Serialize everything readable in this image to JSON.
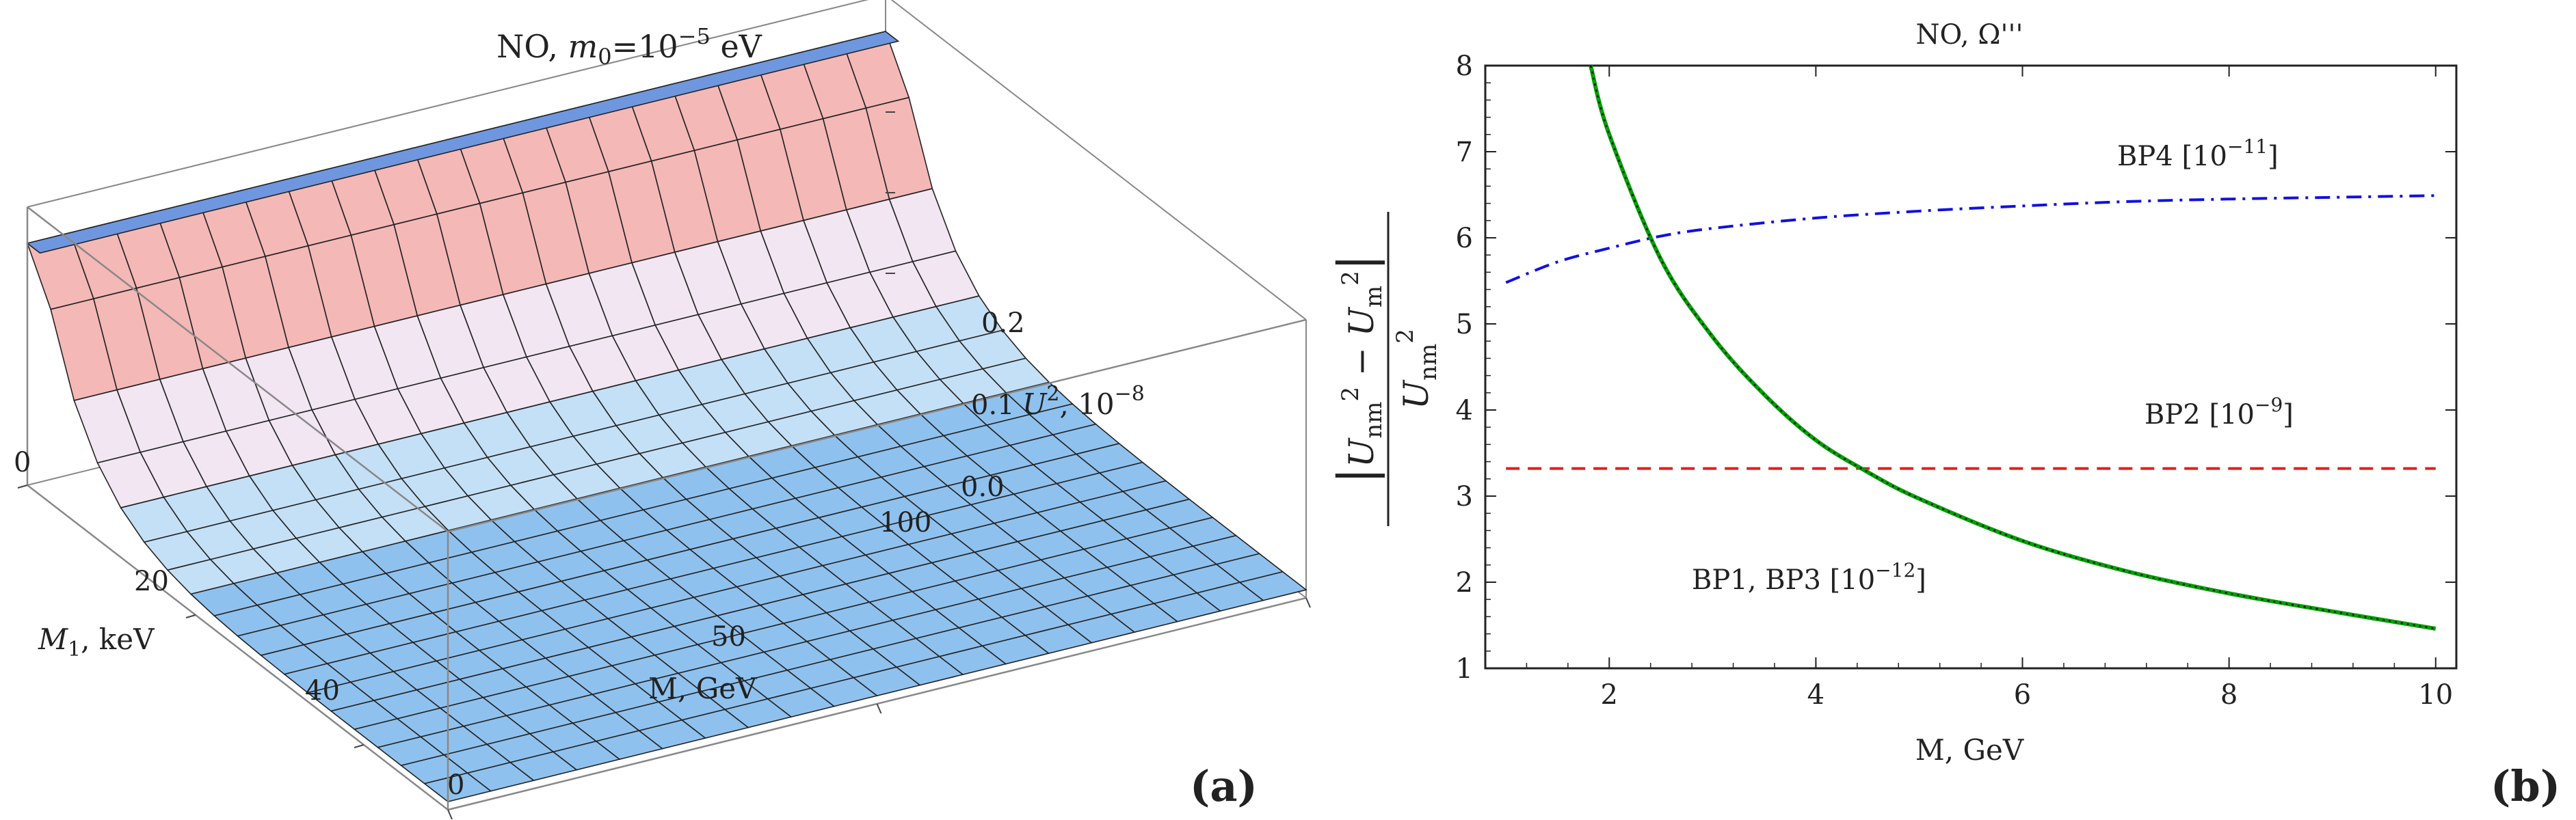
{
  "colors": {
    "surface_low": "#8fc1ee",
    "surface_high": "#f4b8b6",
    "surface_top": "#6f97df",
    "bp4": "#1010e0",
    "bp2": "#e02020",
    "bp13_main": "#00a000",
    "bp13_dot": "#111111"
  },
  "panel_a": {
    "label_open": "(",
    "label_letter": "a",
    "label_close": ")",
    "title_prefix": "NO, ",
    "title_m": "m",
    "title_sub": "0",
    "title_eq": "=10",
    "title_sup": "−5",
    "title_unit": " eV",
    "z_label_main": "U",
    "z_label_sup": "2",
    "z_label_rest": ", 10",
    "z_label_exp": "−8",
    "z_ticks": [
      "0.0",
      "0.1",
      "0.2"
    ],
    "m1_label_main": "M",
    "m1_label_sub": "1",
    "m1_label_rest": ", keV",
    "m1_ticks": [
      "0",
      "20",
      "40"
    ],
    "m_label": "M, GeV",
    "m_ticks": [
      "0",
      "50",
      "100"
    ]
  },
  "panel_b": {
    "label_open": "(",
    "label_letter": "b",
    "label_close": ")",
    "title": "NO,  Ω'''",
    "xlabel": "M, GeV",
    "y_num_open": "|",
    "y_num_a": "U",
    "y_num_a_sub": "nm",
    "y_num_a_sup": "2",
    "y_num_minus": " − ",
    "y_num_b": "U",
    "y_num_b_sub": "m",
    "y_num_b_sup": "2",
    "y_num_close": "|",
    "y_den": "U",
    "y_den_sub": "nm",
    "y_den_sup": "2",
    "ann_bp4": "BP4 [10",
    "ann_bp4_sup": "−11",
    "ann_bp4_end": "]",
    "ann_bp2": "BP2 [10",
    "ann_bp2_sup": "−9",
    "ann_bp2_end": "]",
    "ann_bp13": "BP1, BP3 [10",
    "ann_bp13_sup": "−12",
    "ann_bp13_end": "]"
  },
  "chart_data": [
    {
      "type": "surface3d",
      "title": "NO, m0=10^-5 eV",
      "axes": {
        "M1_keV": {
          "label": "M1, keV",
          "range": [
            0,
            50
          ],
          "ticks": [
            0,
            20,
            40
          ]
        },
        "M_GeV": {
          "label": "M, GeV",
          "range": [
            0,
            100
          ],
          "ticks": [
            0,
            50,
            100
          ]
        },
        "U2": {
          "label": "U^2, 10^-8",
          "range": [
            0,
            0.3
          ],
          "ticks": [
            0.0,
            0.1,
            0.2
          ]
        }
      },
      "description_values": {
        "U2_at_M1_0": 0.3,
        "U2_at_M1_10": 0.1,
        "U2_at_M1_20": 0.05,
        "U2_at_M1_30": 0.03,
        "U2_at_M1_40": 0.02,
        "U2_at_M1_50": 0.01
      }
    },
    {
      "type": "line",
      "title": "NO, Ω'''",
      "xlabel": "M, GeV",
      "ylabel": "|Unm^2 − Um^2| / Unm^2",
      "xlim": [
        0.8,
        10.2
      ],
      "ylim": [
        1,
        8
      ],
      "xticks": [
        2,
        4,
        6,
        8,
        10
      ],
      "yticks": [
        1,
        2,
        3,
        4,
        5,
        6,
        7,
        8
      ],
      "series": [
        {
          "name": "BP4 [10^-11]",
          "style": "dash-dot",
          "color": "#1010e0",
          "x": [
            1,
            1.5,
            2,
            2.5,
            3,
            4,
            5,
            6,
            7,
            8,
            9,
            10
          ],
          "y": [
            5.48,
            5.72,
            5.88,
            6.02,
            6.11,
            6.23,
            6.31,
            6.37,
            6.42,
            6.45,
            6.47,
            6.49
          ]
        },
        {
          "name": "BP2 [10^-9]",
          "style": "dashed",
          "color": "#e02020",
          "x": [
            1,
            10
          ],
          "y": [
            3.32,
            3.32
          ]
        },
        {
          "name": "BP1, BP3 [10^-12]",
          "style": "solid+dotted",
          "color": "#00a000",
          "x": [
            1.82,
            2,
            2.5,
            3,
            3.5,
            4,
            4.5,
            5,
            6,
            7,
            8,
            9,
            10
          ],
          "y": [
            8.0,
            7.2,
            5.75,
            4.85,
            4.18,
            3.65,
            3.28,
            2.97,
            2.48,
            2.13,
            1.87,
            1.66,
            1.46
          ]
        }
      ]
    }
  ]
}
